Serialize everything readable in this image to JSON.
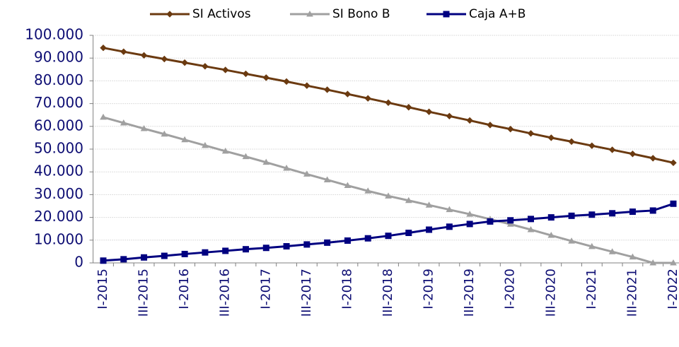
{
  "chart_data": {
    "type": "line",
    "categories": [
      "I-2015",
      null,
      "III-2015",
      null,
      "I-2016",
      null,
      "III-2016",
      null,
      "I-2017",
      null,
      "III-2017",
      null,
      "I-2018",
      null,
      "III-2018",
      null,
      "I-2019",
      null,
      "III-2019",
      null,
      "I-2020",
      null,
      "III-2020",
      null,
      "I-2021",
      null,
      "III-2021",
      null,
      "I-2022"
    ],
    "series": [
      {
        "name": "SI Activos",
        "color": "#6b3a10",
        "marker": "diamond",
        "values": [
          94500,
          92800,
          91200,
          89600,
          88000,
          86400,
          84800,
          83100,
          81400,
          79700,
          77900,
          76100,
          74200,
          72300,
          70400,
          68400,
          66400,
          64500,
          62600,
          60600,
          58800,
          56900,
          55000,
          53300,
          51500,
          49700,
          47900,
          46000,
          44000
        ]
      },
      {
        "name": "SI Bono B",
        "color": "#a0a0a0",
        "marker": "triangle",
        "values": [
          64000,
          61500,
          59000,
          56600,
          54100,
          51600,
          49100,
          46700,
          44200,
          41600,
          39000,
          36500,
          34000,
          31600,
          29400,
          27400,
          25400,
          23400,
          21400,
          19200,
          17000,
          14600,
          12100,
          9600,
          7200,
          4900,
          2600,
          0,
          0
        ]
      },
      {
        "name": "Caja A+B",
        "color": "#000080",
        "marker": "square",
        "values": [
          1000,
          1600,
          2400,
          3100,
          3900,
          4600,
          5300,
          6000,
          6600,
          7300,
          8100,
          8900,
          9800,
          10800,
          11900,
          13200,
          14600,
          15900,
          17100,
          18200,
          18700,
          19300,
          20000,
          20700,
          21200,
          21800,
          22500,
          23000,
          26000
        ]
      }
    ],
    "ylim": [
      0,
      100000
    ],
    "yticks": [
      0,
      {
        "value": 10000,
        "label": "10.000"
      },
      {
        "value": 20000,
        "label": "20.000"
      },
      {
        "value": 30000,
        "label": "30.000"
      },
      {
        "value": 40000,
        "label": "40.000"
      },
      {
        "value": 50000,
        "label": "50.000"
      },
      {
        "value": 60000,
        "label": "60.000"
      },
      {
        "value": 70000,
        "label": "70.000"
      },
      {
        "value": 80000,
        "label": "80.000"
      },
      {
        "value": 90000,
        "label": "90.000"
      },
      {
        "value": 100000,
        "label": "100.000"
      }
    ],
    "grid": true,
    "legend": "top"
  }
}
